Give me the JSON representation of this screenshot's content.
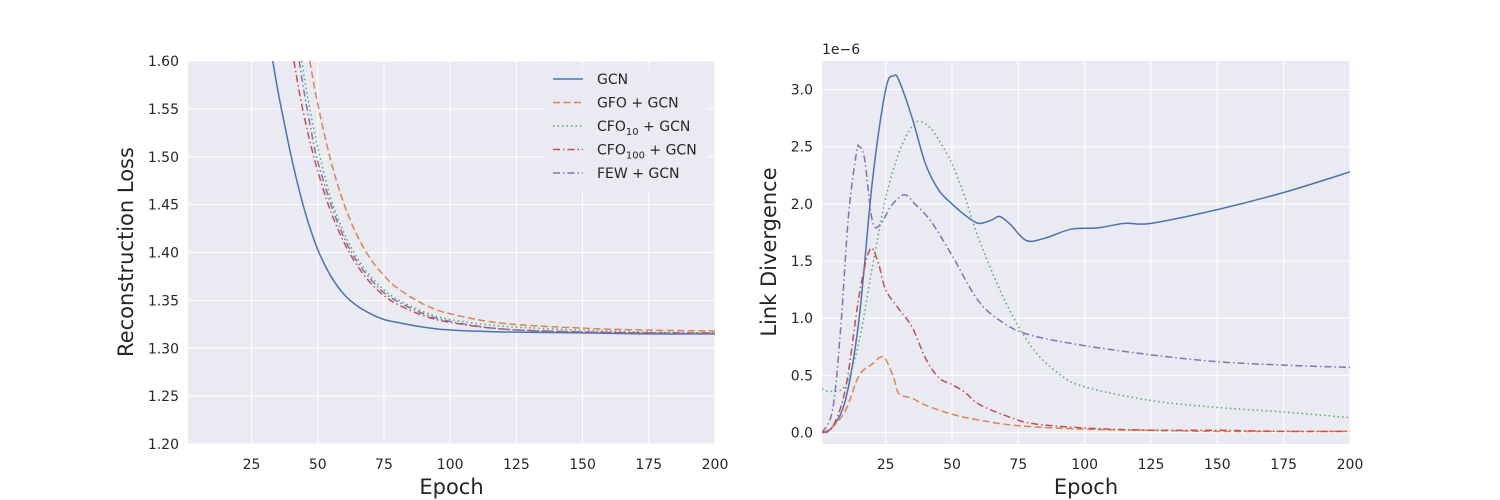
{
  "chart_data": [
    {
      "type": "line",
      "xlabel": "Epoch",
      "ylabel": "Reconstruction Loss",
      "xlim": [
        1,
        200
      ],
      "ylim": [
        1.2,
        1.6
      ],
      "xticks": [
        25,
        50,
        75,
        100,
        125,
        150,
        175,
        200
      ],
      "yticks": [
        "1.20",
        "1.25",
        "1.30",
        "1.35",
        "1.40",
        "1.45",
        "1.50",
        "1.55",
        "1.60"
      ],
      "grid": true,
      "legend": "top-right",
      "series": [
        {
          "name": "GCN",
          "legend_label": "GCN",
          "color": "#4c72b0",
          "dash": "solid",
          "x": [
            33,
            35,
            37,
            40,
            43,
            46,
            50,
            55,
            60,
            65,
            70,
            75,
            80,
            90,
            100,
            120,
            150,
            175,
            200
          ],
          "y": [
            1.6,
            1.568,
            1.54,
            1.5,
            1.465,
            1.435,
            1.403,
            1.375,
            1.356,
            1.344,
            1.336,
            1.33,
            1.327,
            1.322,
            1.319,
            1.317,
            1.316,
            1.315,
            1.315
          ]
        },
        {
          "name": "GFO + GCN",
          "legend_label": "GFO + GCN",
          "color": "#dd8452",
          "dash": "dashed",
          "x": [
            47,
            50,
            55,
            60,
            65,
            70,
            75,
            80,
            90,
            100,
            120,
            150,
            175,
            200
          ],
          "y": [
            1.6,
            1.555,
            1.495,
            1.45,
            1.417,
            1.393,
            1.376,
            1.363,
            1.346,
            1.336,
            1.326,
            1.321,
            1.319,
            1.318
          ]
        },
        {
          "name": "CFO10 + GCN",
          "legend_label": "CFO",
          "legend_sub": "10",
          "legend_suffix": " + GCN",
          "color": "#55a868",
          "dash": "dotted",
          "x": [
            44,
            46,
            50,
            55,
            60,
            65,
            70,
            75,
            80,
            90,
            100,
            120,
            150,
            175,
            200
          ],
          "y": [
            1.6,
            1.565,
            1.51,
            1.456,
            1.42,
            1.394,
            1.375,
            1.361,
            1.351,
            1.338,
            1.33,
            1.323,
            1.319,
            1.317,
            1.316
          ]
        },
        {
          "name": "CFO100 + GCN",
          "legend_label": "CFO",
          "legend_sub": "100",
          "legend_suffix": " + GCN",
          "color": "#c44e52",
          "dash": "dashdot",
          "x": [
            41,
            43,
            46,
            50,
            55,
            60,
            65,
            70,
            75,
            80,
            90,
            100,
            120,
            150,
            175,
            200
          ],
          "y": [
            1.6,
            1.568,
            1.528,
            1.485,
            1.442,
            1.41,
            1.386,
            1.368,
            1.355,
            1.346,
            1.334,
            1.327,
            1.32,
            1.317,
            1.316,
            1.316
          ]
        },
        {
          "name": "FEW + GCN",
          "legend_label": "FEW + GCN",
          "color": "#8172b3",
          "dash": "dashdot",
          "x": [
            43,
            45,
            48,
            50,
            55,
            60,
            65,
            70,
            75,
            80,
            90,
            100,
            120,
            150,
            175,
            200
          ],
          "y": [
            1.6,
            1.565,
            1.52,
            1.495,
            1.45,
            1.415,
            1.39,
            1.372,
            1.358,
            1.349,
            1.336,
            1.328,
            1.32,
            1.317,
            1.316,
            1.315
          ]
        }
      ]
    },
    {
      "type": "line",
      "xlabel": "Epoch",
      "ylabel": "Link Divergence",
      "offset_text": "1e−6",
      "xlim": [
        1,
        200
      ],
      "ylim": [
        -0.1,
        3.25
      ],
      "xticks": [
        25,
        50,
        75,
        100,
        125,
        150,
        175,
        200
      ],
      "yticks": [
        "0.0",
        "0.5",
        "1.0",
        "1.5",
        "2.0",
        "2.5",
        "3.0"
      ],
      "grid": true,
      "series": [
        {
          "name": "GCN",
          "color": "#4c72b0",
          "dash": "solid",
          "x": [
            1,
            5,
            10,
            15,
            20,
            25,
            28,
            30,
            35,
            40,
            45,
            50,
            55,
            60,
            65,
            68,
            72,
            78,
            85,
            95,
            105,
            115,
            125,
            150,
            175,
            200
          ],
          "y": [
            0.0,
            0.05,
            0.3,
            1.0,
            2.2,
            3.0,
            3.12,
            3.08,
            2.75,
            2.35,
            2.12,
            2.0,
            1.9,
            1.83,
            1.86,
            1.89,
            1.82,
            1.68,
            1.7,
            1.78,
            1.79,
            1.83,
            1.83,
            1.95,
            2.1,
            2.28
          ]
        },
        {
          "name": "GFO + GCN",
          "color": "#dd8452",
          "dash": "dashed",
          "x": [
            1,
            5,
            10,
            15,
            20,
            23,
            25,
            28,
            30,
            35,
            40,
            50,
            60,
            75,
            100,
            125,
            150,
            175,
            200
          ],
          "y": [
            0.0,
            0.05,
            0.2,
            0.5,
            0.6,
            0.66,
            0.64,
            0.48,
            0.34,
            0.3,
            0.24,
            0.16,
            0.11,
            0.06,
            0.03,
            0.02,
            0.01,
            0.01,
            0.01
          ]
        },
        {
          "name": "CFO10 + GCN",
          "color": "#55a868",
          "dash": "dotted",
          "x": [
            1,
            5,
            10,
            15,
            20,
            25,
            30,
            35,
            38,
            42,
            46,
            50,
            55,
            60,
            70,
            80,
            90,
            100,
            125,
            150,
            175,
            200
          ],
          "y": [
            0.38,
            0.36,
            0.42,
            0.8,
            1.45,
            2.05,
            2.45,
            2.68,
            2.72,
            2.66,
            2.52,
            2.35,
            2.05,
            1.7,
            1.15,
            0.75,
            0.52,
            0.4,
            0.28,
            0.22,
            0.18,
            0.13
          ]
        },
        {
          "name": "CFO100 + GCN",
          "color": "#c44e52",
          "dash": "dashdot",
          "x": [
            1,
            5,
            10,
            15,
            19,
            22,
            25,
            30,
            35,
            40,
            45,
            50,
            55,
            60,
            70,
            80,
            100,
            125,
            150,
            175,
            200
          ],
          "y": [
            0.0,
            0.05,
            0.4,
            1.2,
            1.6,
            1.5,
            1.25,
            1.08,
            0.92,
            0.65,
            0.48,
            0.42,
            0.35,
            0.25,
            0.15,
            0.08,
            0.04,
            0.02,
            0.02,
            0.01,
            0.01
          ]
        },
        {
          "name": "FEW + GCN",
          "color": "#8172b3",
          "dash": "dashdot",
          "x": [
            1,
            5,
            8,
            11,
            14,
            15,
            17,
            20,
            23,
            27,
            32,
            36,
            42,
            50,
            60,
            70,
            80,
            100,
            125,
            150,
            175,
            200
          ],
          "y": [
            0.0,
            0.2,
            0.9,
            1.9,
            2.45,
            2.5,
            2.4,
            1.85,
            1.82,
            1.98,
            2.08,
            2.0,
            1.85,
            1.55,
            1.15,
            0.95,
            0.85,
            0.76,
            0.68,
            0.62,
            0.59,
            0.57
          ]
        }
      ]
    }
  ]
}
